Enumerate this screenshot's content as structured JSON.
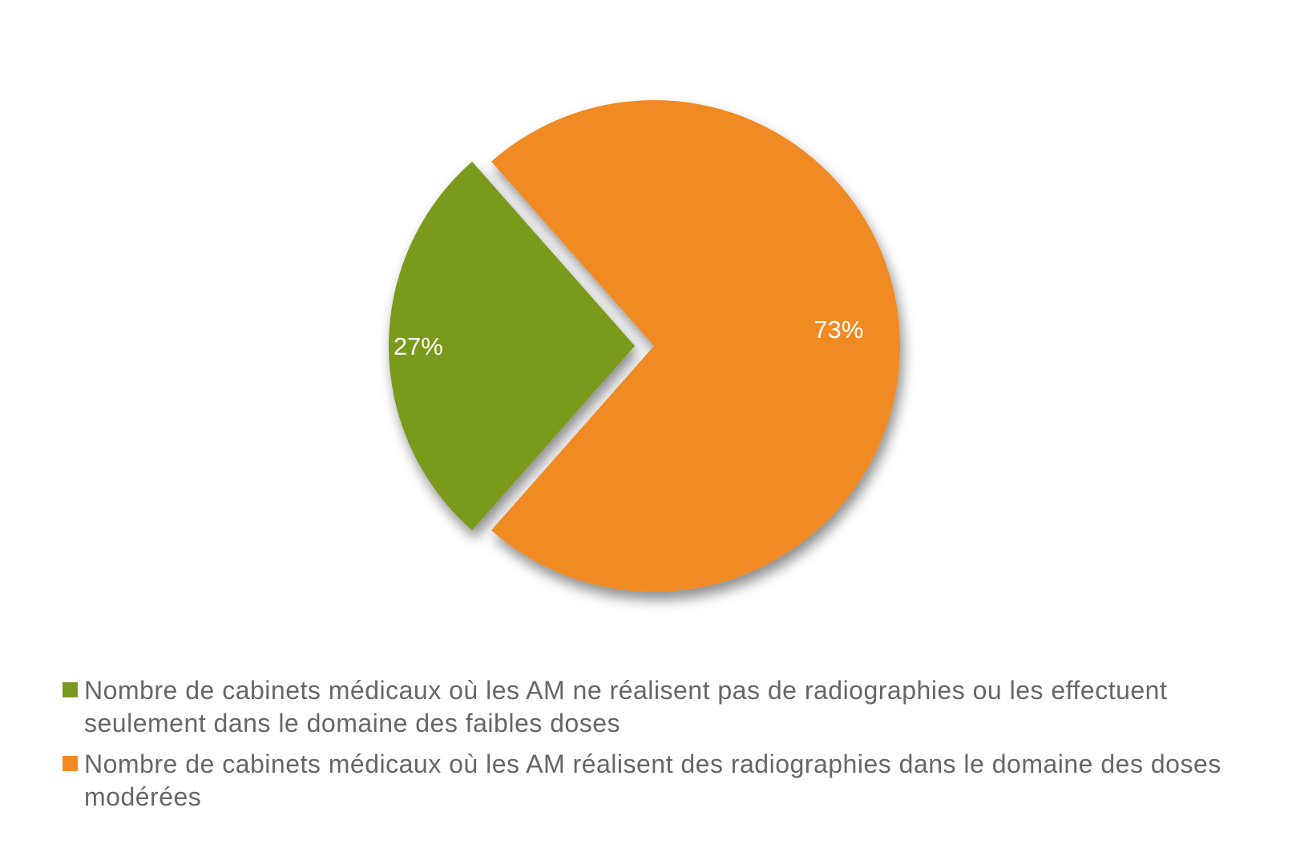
{
  "chart_data": {
    "type": "pie",
    "categories": [
      "Nombre de cabinets médicaux où les AM ne réalisent pas de radiographies ou les effectuent seulement dans le domaine des faibles doses",
      "Nombre de cabinets médicaux où les AM réalisent des radiographies dans le domaine des doses modérées"
    ],
    "values": [
      27,
      73
    ],
    "value_labels": [
      "27%",
      "73%"
    ],
    "colors": [
      "#7a9a1f",
      "#f08a21"
    ]
  }
}
